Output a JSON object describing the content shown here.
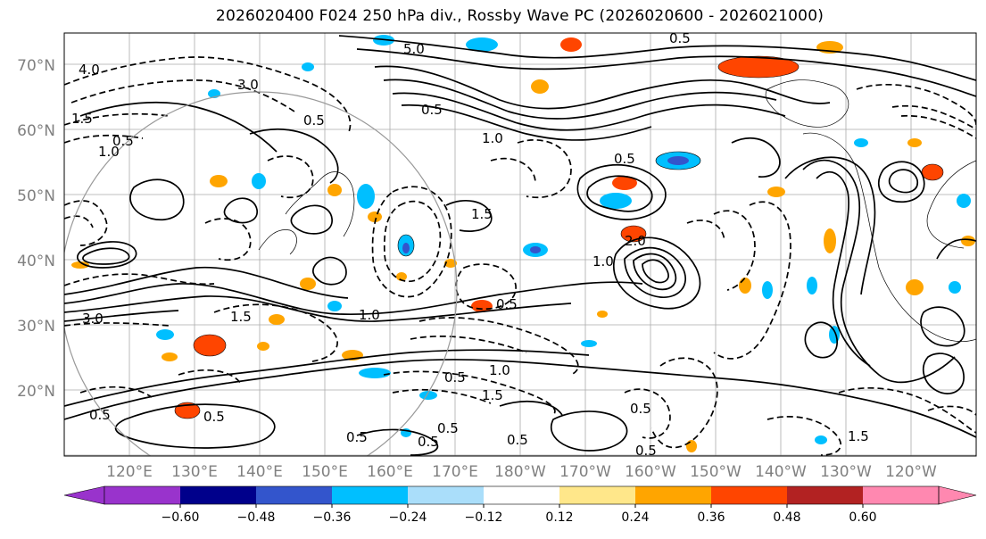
{
  "title": "2026020400 F024 250 hPa div., Rossby Wave PC (2026020600 - 2026021000)",
  "map": {
    "lat_labels": [
      "70°N",
      "60°N",
      "50°N",
      "40°N",
      "30°N",
      "20°N"
    ],
    "lon_labels": [
      "120°E",
      "130°E",
      "140°E",
      "150°E",
      "160°E",
      "170°E",
      "180°W",
      "170°W",
      "160°W",
      "150°W",
      "140°W",
      "130°W",
      "120°W"
    ],
    "label_color": "#808080",
    "contour_labels": [
      "4.0",
      "5.0",
      "0.5",
      "1.5",
      "3.0",
      "1.0",
      "0.5",
      "1.5",
      "2.0",
      "0.5",
      "1.0",
      "3.0",
      "0.5",
      "1.0",
      "0.5",
      "0.5",
      "1.5",
      "0.5",
      "1.0",
      "0.5",
      "0.5",
      "0.5",
      "1.5",
      "0.5",
      "0.5",
      "1.0",
      "0.5",
      "1.5",
      "0.5",
      "0.5"
    ]
  },
  "colorbar": {
    "ticks": [
      "−0.60",
      "−0.48",
      "−0.36",
      "−0.24",
      "−0.12",
      "0.12",
      "0.24",
      "0.36",
      "0.48",
      "0.60"
    ],
    "colors": [
      "#9933cc",
      "#00008b",
      "#3355cc",
      "#00bfff",
      "#aadefa",
      "#ffffff",
      "#ffe78a",
      "#ffa500",
      "#ff4500",
      "#b22222",
      "#ff88b0"
    ]
  }
}
